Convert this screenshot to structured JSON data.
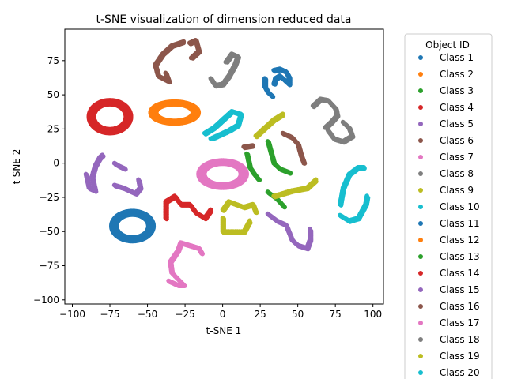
{
  "chart_data": {
    "type": "scatter",
    "title": "t-SNE visualization of dimension reduced data",
    "xlabel": "t-SNE 1",
    "ylabel": "t-SNE 2",
    "xlim": [
      -105,
      107
    ],
    "ylim": [
      -103,
      98
    ],
    "xticks": [
      -100,
      -75,
      -50,
      -25,
      0,
      25,
      50,
      75,
      100
    ],
    "yticks": [
      -100,
      -75,
      -50,
      -25,
      0,
      25,
      50,
      75
    ],
    "legend": {
      "title": "Object ID",
      "placement": "right-outside",
      "entries": [
        "Class 1",
        "Class 2",
        "Class 3",
        "Class 4",
        "Class 5",
        "Class 6",
        "Class 7",
        "Class 8",
        "Class 9",
        "Class 10",
        "Class 11",
        "Class 12",
        "Class 13",
        "Class 14",
        "Class 15",
        "Class 16",
        "Class 17",
        "Class 18",
        "Class 19",
        "Class 20"
      ]
    },
    "colors": [
      "#1f77b4",
      "#ff7f0e",
      "#2ca02c",
      "#d62728",
      "#9467bd",
      "#8c564b",
      "#e377c2",
      "#7f7f7f",
      "#bcbd22",
      "#17becf"
    ],
    "grid": false,
    "clusters": [
      {
        "class": "Class 1",
        "shape": "curve",
        "points": [
          [
            34,
            68
          ],
          [
            38,
            69
          ],
          [
            42,
            67
          ],
          [
            44,
            63
          ],
          [
            44,
            58
          ],
          [
            42,
            60
          ],
          [
            38,
            64
          ],
          [
            35,
            62
          ],
          [
            34,
            58
          ]
        ]
      },
      {
        "class": "Class 1",
        "shape": "curve",
        "points": [
          [
            28,
            62
          ],
          [
            28,
            56
          ],
          [
            30,
            52
          ],
          [
            33,
            49
          ]
        ]
      },
      {
        "class": "Class 2",
        "shape": "ring",
        "cx": -32,
        "cy": 37,
        "rx": 16,
        "ry": 8
      },
      {
        "class": "Class 3",
        "shape": "curve",
        "points": [
          [
            16,
            7
          ],
          [
            18,
            -3
          ],
          [
            21,
            -8
          ],
          [
            24,
            -12
          ]
        ]
      },
      {
        "class": "Class 3",
        "shape": "curve",
        "points": [
          [
            30,
            16
          ],
          [
            32,
            8
          ],
          [
            34,
            0
          ],
          [
            38,
            -4
          ],
          [
            45,
            -7
          ]
        ]
      },
      {
        "class": "Class 3",
        "shape": "curve",
        "points": [
          [
            30,
            -21
          ],
          [
            36,
            -26
          ],
          [
            41,
            -32
          ]
        ]
      },
      {
        "class": "Class 4",
        "shape": "ring",
        "cx": -75,
        "cy": 34,
        "rx": 14,
        "ry": 12
      },
      {
        "class": "Class 4",
        "shape": "curve",
        "points": [
          [
            -38,
            -40
          ],
          [
            -38,
            -28
          ],
          [
            -32,
            -24
          ],
          [
            -28,
            -30
          ],
          [
            -22,
            -30
          ],
          [
            -18,
            -36
          ],
          [
            -12,
            -40
          ],
          [
            -8,
            -34
          ]
        ]
      },
      {
        "class": "Class 5",
        "shape": "curve",
        "points": [
          [
            -91,
            -8
          ],
          [
            -89,
            -18
          ],
          [
            -85,
            -20
          ],
          [
            -87,
            -10
          ],
          [
            -85,
            -2
          ],
          [
            -82,
            4
          ],
          [
            -80,
            6
          ]
        ]
      },
      {
        "class": "Class 5",
        "shape": "curve",
        "points": [
          [
            -72,
            -16
          ],
          [
            -66,
            -18
          ],
          [
            -58,
            -22
          ],
          [
            -55,
            -18
          ],
          [
            -56,
            -12
          ]
        ]
      },
      {
        "class": "Class 5",
        "shape": "curve",
        "points": [
          [
            -72,
            0
          ],
          [
            -69,
            -2
          ],
          [
            -65,
            -4
          ]
        ]
      },
      {
        "class": "Class 5",
        "shape": "curve",
        "points": [
          [
            30,
            -37
          ],
          [
            36,
            -42
          ],
          [
            42,
            -45
          ],
          [
            46,
            -56
          ],
          [
            50,
            -60
          ],
          [
            56,
            -62
          ],
          [
            58,
            -56
          ],
          [
            58,
            -48
          ]
        ]
      },
      {
        "class": "Class 6",
        "shape": "curve",
        "points": [
          [
            -38,
            66
          ],
          [
            -36,
            60
          ],
          [
            -43,
            64
          ],
          [
            -45,
            72
          ],
          [
            -40,
            80
          ],
          [
            -34,
            86
          ],
          [
            -26,
            89
          ]
        ]
      },
      {
        "class": "Class 6",
        "shape": "curve",
        "points": [
          [
            -22,
            88
          ],
          [
            -18,
            90
          ],
          [
            -16,
            82
          ],
          [
            -21,
            77
          ]
        ]
      },
      {
        "class": "Class 6",
        "shape": "curve",
        "points": [
          [
            40,
            22
          ],
          [
            46,
            19
          ],
          [
            50,
            14
          ],
          [
            52,
            6
          ],
          [
            54,
            0
          ]
        ]
      },
      {
        "class": "Class 6",
        "shape": "curve",
        "points": [
          [
            14,
            12
          ],
          [
            20,
            13
          ]
        ]
      },
      {
        "class": "Class 7",
        "shape": "ring",
        "cx": 0,
        "cy": -8,
        "rx": 16,
        "ry": 10
      },
      {
        "class": "Class 7",
        "shape": "curve",
        "points": [
          [
            -36,
            -86
          ],
          [
            -30,
            -89
          ],
          [
            -26,
            -89
          ],
          [
            -34,
            -80
          ],
          [
            -35,
            -72
          ],
          [
            -30,
            -64
          ],
          [
            -28,
            -58
          ],
          [
            -22,
            -60
          ],
          [
            -16,
            -62
          ],
          [
            -14,
            -66
          ]
        ]
      },
      {
        "class": "Class 8",
        "shape": "curve",
        "points": [
          [
            -8,
            62
          ],
          [
            -5,
            57
          ],
          [
            0,
            58
          ],
          [
            4,
            64
          ],
          [
            8,
            72
          ],
          [
            10,
            78
          ],
          [
            6,
            80
          ],
          [
            2,
            74
          ]
        ]
      },
      {
        "class": "Class 8",
        "shape": "curve",
        "points": [
          [
            60,
            42
          ],
          [
            65,
            47
          ],
          [
            70,
            46
          ],
          [
            75,
            40
          ],
          [
            76,
            35
          ],
          [
            72,
            30
          ],
          [
            68,
            26
          ]
        ]
      },
      {
        "class": "Class 8",
        "shape": "curve",
        "points": [
          [
            70,
            24
          ],
          [
            74,
            18
          ],
          [
            80,
            16
          ],
          [
            86,
            20
          ],
          [
            84,
            26
          ],
          [
            80,
            30
          ]
        ]
      },
      {
        "class": "Class 9",
        "shape": "curve",
        "points": [
          [
            22,
            20
          ],
          [
            28,
            26
          ],
          [
            34,
            32
          ],
          [
            40,
            36
          ]
        ]
      },
      {
        "class": "Class 9",
        "shape": "curve",
        "points": [
          [
            0,
            -34
          ],
          [
            4,
            -28
          ],
          [
            14,
            -32
          ],
          [
            20,
            -30
          ],
          [
            22,
            -36
          ]
        ]
      },
      {
        "class": "Class 9",
        "shape": "curve",
        "points": [
          [
            34,
            -24
          ],
          [
            46,
            -20
          ],
          [
            56,
            -18
          ],
          [
            62,
            -12
          ]
        ]
      },
      {
        "class": "Class 9",
        "shape": "curve",
        "points": [
          [
            0,
            -40
          ],
          [
            0,
            -50
          ],
          [
            14,
            -50
          ],
          [
            18,
            -42
          ]
        ]
      },
      {
        "class": "Class 10",
        "shape": "curve",
        "points": [
          [
            -12,
            22
          ],
          [
            -6,
            26
          ],
          [
            0,
            32
          ],
          [
            6,
            38
          ],
          [
            12,
            36
          ],
          [
            10,
            28
          ],
          [
            4,
            24
          ],
          [
            -8,
            18
          ]
        ]
      },
      {
        "class": "Class 10",
        "shape": "curve",
        "points": [
          [
            78,
            -30
          ],
          [
            80,
            -18
          ],
          [
            84,
            -8
          ],
          [
            90,
            -3
          ],
          [
            94,
            -3
          ]
        ]
      },
      {
        "class": "Class 10",
        "shape": "curve",
        "points": [
          [
            78,
            -38
          ],
          [
            84,
            -42
          ],
          [
            90,
            -40
          ],
          [
            95,
            -30
          ],
          [
            96,
            -24
          ]
        ]
      },
      {
        "class": "Class 11",
        "shape": "ring",
        "cx": -60,
        "cy": -46,
        "rx": 14,
        "ry": 11
      }
    ]
  }
}
